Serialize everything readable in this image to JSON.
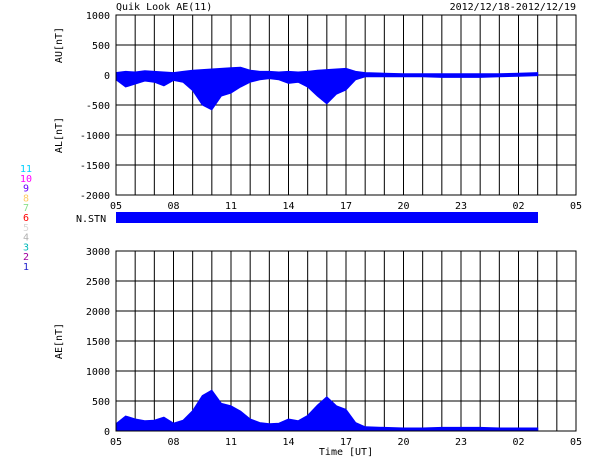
{
  "header": {
    "title": "Quik Look AE(11)",
    "date_range": "2012/12/18-2012/12/19"
  },
  "station_bar": {
    "label": "N.STN"
  },
  "station_legend": [
    {
      "number": "11",
      "color": "#00d0ff"
    },
    {
      "number": "10",
      "color": "#ff00ff"
    },
    {
      "number": "9",
      "color": "#6a00ff"
    },
    {
      "number": "8",
      "color": "#ffcc66"
    },
    {
      "number": "7",
      "color": "#88e08a"
    },
    {
      "number": "6",
      "color": "#ff0000"
    },
    {
      "number": "5",
      "color": "#d8d8d8"
    },
    {
      "number": "4",
      "color": "#b0b0b0"
    },
    {
      "number": "3",
      "color": "#00b8b8"
    },
    {
      "number": "2",
      "color": "#a000a0"
    },
    {
      "number": "1",
      "color": "#2222cc"
    }
  ],
  "chart_data": [
    {
      "type": "area",
      "panel": "AU/AL",
      "ylabel_top": "AU[nT]",
      "ylabel_bottom": "AL[nT]",
      "ylim": [
        -2000,
        1000
      ],
      "yticks": [
        1000,
        500,
        0,
        -500,
        -1000,
        -1500,
        -2000
      ],
      "x_range_hours": [
        5,
        29
      ],
      "x_tick_labels": [
        "05",
        "08",
        "11",
        "14",
        "17",
        "20",
        "23",
        "02",
        "05"
      ],
      "grid": true,
      "fill_color": "#0000ff",
      "au_series": {
        "name": "AU",
        "x": [
          5.0,
          5.5,
          6.0,
          6.5,
          7.0,
          7.5,
          8.0,
          8.5,
          9.0,
          9.5,
          10.0,
          10.5,
          11.0,
          11.5,
          12.0,
          12.5,
          13.0,
          13.5,
          14.0,
          14.5,
          15.0,
          15.5,
          16.0,
          16.5,
          17.0,
          17.5,
          18.0,
          19.0,
          20.0,
          21.0,
          22.0,
          23.0,
          24.0,
          25.0,
          26.0,
          27.0
        ],
        "values": [
          40,
          60,
          50,
          70,
          60,
          50,
          40,
          60,
          80,
          90,
          100,
          110,
          120,
          130,
          80,
          60,
          60,
          50,
          60,
          50,
          60,
          80,
          90,
          100,
          110,
          60,
          40,
          30,
          20,
          20,
          20,
          20,
          20,
          20,
          30,
          40
        ]
      },
      "al_series": {
        "name": "AL",
        "x": [
          5.0,
          5.5,
          6.0,
          6.5,
          7.0,
          7.5,
          8.0,
          8.5,
          9.0,
          9.5,
          10.0,
          10.5,
          11.0,
          11.5,
          12.0,
          12.5,
          13.0,
          13.5,
          14.0,
          14.5,
          15.0,
          15.5,
          16.0,
          16.5,
          17.0,
          17.5,
          18.0,
          19.0,
          20.0,
          21.0,
          22.0,
          23.0,
          24.0,
          25.0,
          26.0,
          27.0
        ],
        "values": [
          -80,
          -200,
          -150,
          -100,
          -120,
          -180,
          -90,
          -120,
          -260,
          -500,
          -580,
          -350,
          -300,
          -200,
          -120,
          -80,
          -60,
          -80,
          -140,
          -120,
          -200,
          -350,
          -480,
          -320,
          -250,
          -80,
          -30,
          -30,
          -30,
          -30,
          -40,
          -40,
          -40,
          -30,
          -20,
          -10
        ]
      }
    },
    {
      "type": "area",
      "panel": "AE",
      "ylabel": "AE[nT]",
      "xlabel": "Time [UT]",
      "ylim": [
        0,
        3000
      ],
      "yticks": [
        3000,
        2500,
        2000,
        1500,
        1000,
        500,
        0
      ],
      "x_range_hours": [
        5,
        29
      ],
      "x_tick_labels": [
        "05",
        "08",
        "11",
        "14",
        "17",
        "20",
        "23",
        "02",
        "05"
      ],
      "grid": true,
      "fill_color": "#0000ff",
      "series": {
        "name": "AE",
        "x": [
          5.0,
          5.5,
          6.0,
          6.5,
          7.0,
          7.5,
          8.0,
          8.5,
          9.0,
          9.5,
          10.0,
          10.5,
          11.0,
          11.5,
          12.0,
          12.5,
          13.0,
          13.5,
          14.0,
          14.5,
          15.0,
          15.5,
          16.0,
          16.5,
          17.0,
          17.5,
          18.0,
          19.0,
          20.0,
          21.0,
          22.0,
          23.0,
          24.0,
          25.0,
          26.0,
          27.0
        ],
        "values": [
          120,
          250,
          200,
          170,
          180,
          230,
          130,
          180,
          340,
          590,
          680,
          460,
          420,
          330,
          200,
          140,
          120,
          130,
          200,
          170,
          260,
          430,
          570,
          420,
          360,
          140,
          70,
          60,
          50,
          50,
          60,
          60,
          60,
          50,
          50,
          50
        ]
      }
    }
  ]
}
